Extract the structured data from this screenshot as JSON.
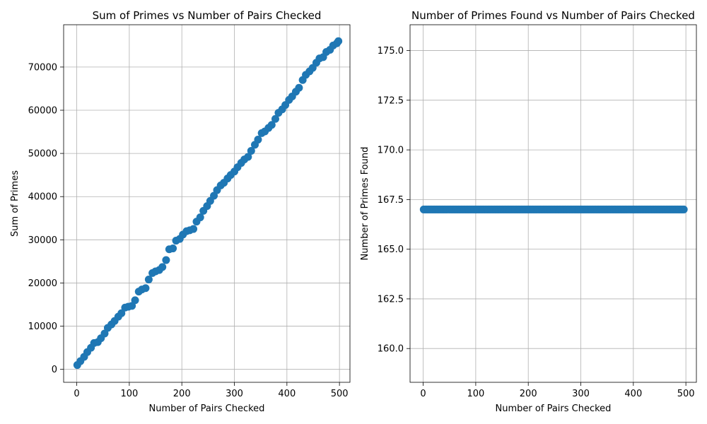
{
  "chart_data": [
    {
      "type": "scatter",
      "title": "Sum of Primes vs Number of Pairs Checked",
      "xlabel": "Number of Pairs Checked",
      "ylabel": "Sum of Primes",
      "xlim": [
        -25,
        520
      ],
      "ylim": [
        -3000,
        79800
      ],
      "xticks": [
        0,
        100,
        200,
        300,
        400,
        500
      ],
      "yticks": [
        0,
        10000,
        20000,
        30000,
        40000,
        50000,
        60000,
        70000
      ],
      "grid": true,
      "color": "#1f77b4",
      "x": [
        1,
        7,
        14,
        20,
        27,
        33,
        40,
        46,
        53,
        59,
        66,
        72,
        79,
        85,
        92,
        98,
        105,
        111,
        118,
        124,
        131,
        137,
        144,
        150,
        157,
        163,
        170,
        176,
        183,
        189,
        196,
        202,
        209,
        215,
        222,
        228,
        235,
        241,
        248,
        254,
        261,
        267,
        274,
        280,
        287,
        293,
        300,
        306,
        313,
        319,
        326,
        332,
        339,
        345,
        352,
        358,
        365,
        371,
        378,
        384,
        391,
        397,
        404,
        410,
        417,
        423,
        430,
        436,
        443,
        449,
        456,
        462,
        469,
        475,
        482,
        488,
        495,
        498
      ],
      "y": [
        1000,
        1900,
        2900,
        4000,
        5000,
        6100,
        6300,
        7200,
        8300,
        9600,
        10400,
        11200,
        12200,
        13000,
        14300,
        14500,
        14700,
        16000,
        18000,
        18500,
        18800,
        20800,
        22300,
        22700,
        23000,
        23700,
        25300,
        27800,
        28000,
        29800,
        30200,
        31200,
        32000,
        32200,
        32500,
        34200,
        35200,
        36700,
        37800,
        39000,
        40200,
        41500,
        42600,
        43200,
        44200,
        45000,
        45800,
        46800,
        47800,
        48600,
        49200,
        50600,
        52000,
        53200,
        54700,
        55100,
        55900,
        56600,
        58000,
        59400,
        60200,
        61200,
        62400,
        63200,
        64300,
        65200,
        67000,
        68200,
        69000,
        69800,
        71000,
        72000,
        72300,
        73500,
        74000,
        75000,
        75500,
        76000
      ]
    },
    {
      "type": "scatter",
      "title": "Number of Primes Found vs Number of Pairs Checked",
      "xlabel": "Number of Pairs Checked",
      "ylabel": "Number of Primes Found",
      "xlim": [
        -25,
        520
      ],
      "ylim": [
        158.3,
        176.3
      ],
      "xticks": [
        0,
        100,
        200,
        300,
        400,
        500
      ],
      "yticks": [
        160.0,
        162.5,
        165.0,
        167.5,
        170.0,
        172.5,
        175.0
      ],
      "ytick_labels": [
        "160.0",
        "162.5",
        "165.0",
        "167.5",
        "170.0",
        "172.5",
        "175.0"
      ],
      "grid": true,
      "color": "#1f77b4",
      "constant_value": 167,
      "x_range": [
        1,
        498
      ]
    }
  ]
}
